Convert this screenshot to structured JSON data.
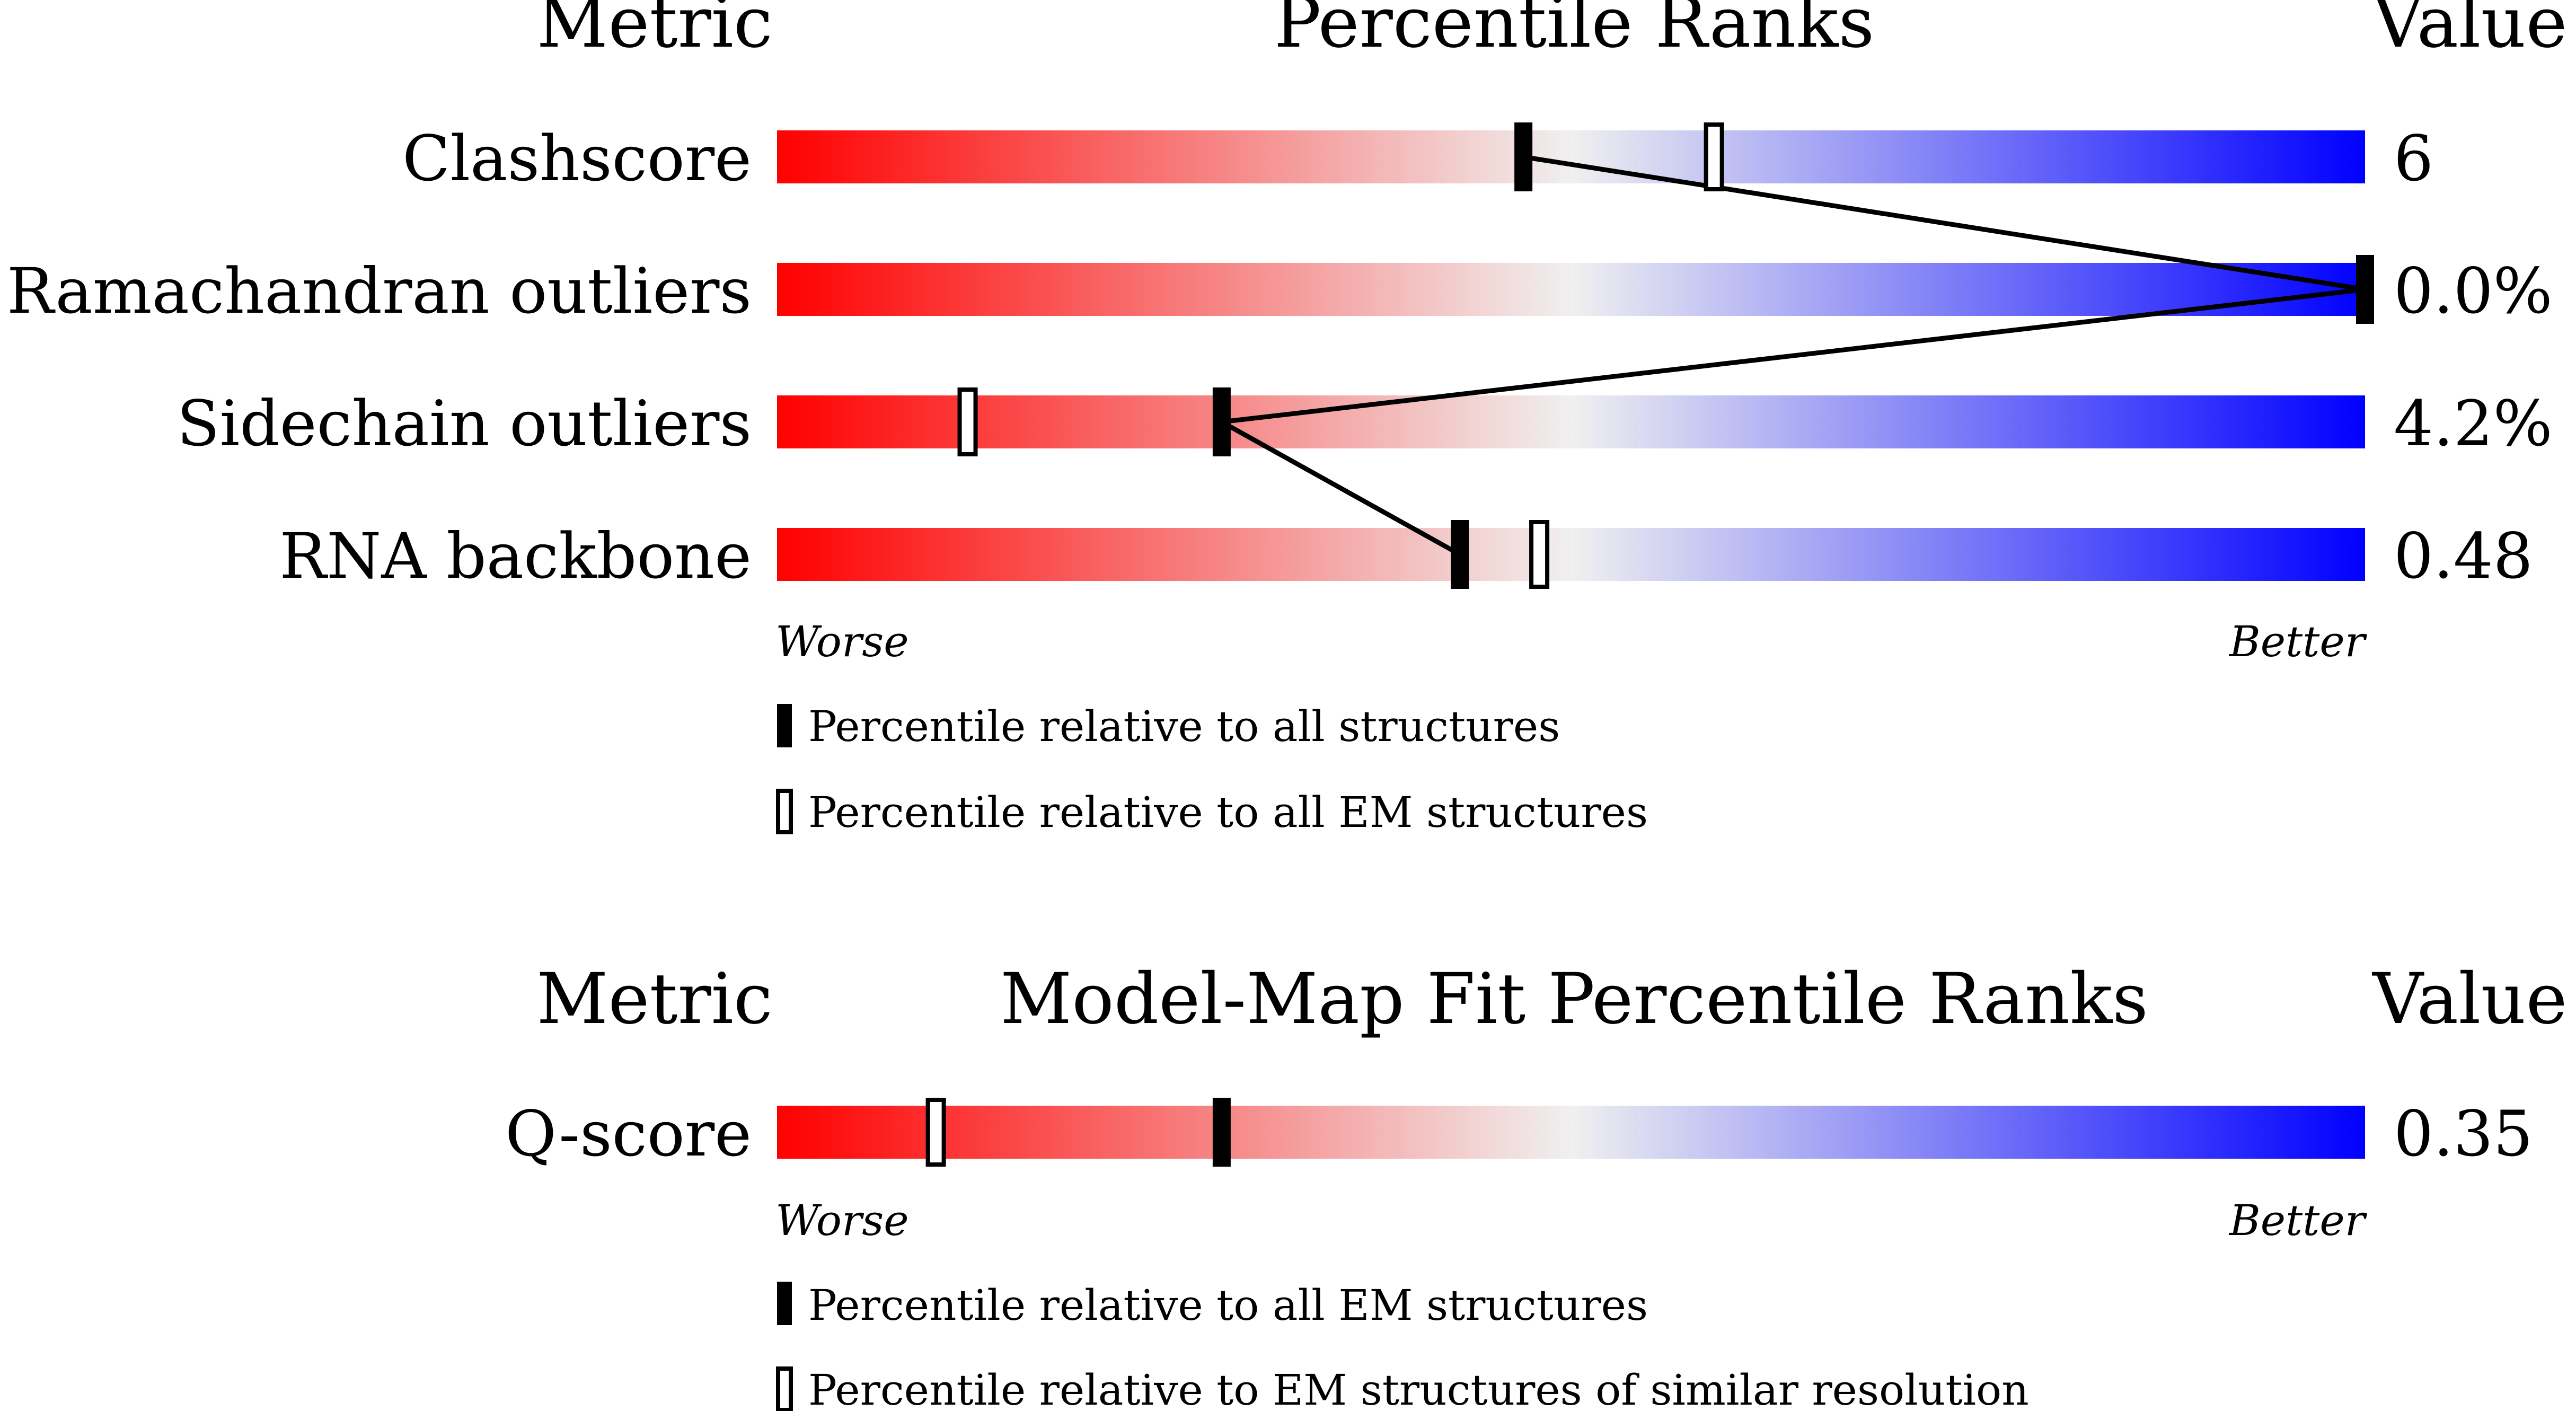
{
  "gradient_colors": {
    "worse": "#ff0000",
    "middle": "#f0f0f0",
    "better": "#0000ff"
  },
  "sections": [
    {
      "header_metric": "Metric",
      "header_title": "Percentile Ranks",
      "header_value": "Value",
      "axis_left": "Worse",
      "axis_right": "Better",
      "legend": [
        {
          "style": "filled",
          "text": "Percentile relative to all structures"
        },
        {
          "style": "hollow",
          "text": "Percentile relative to all EM structures"
        }
      ]
    },
    {
      "header_metric": "Metric",
      "header_title": "Model-Map Fit Percentile Ranks",
      "header_value": "Value",
      "axis_left": "Worse",
      "axis_right": "Better",
      "legend": [
        {
          "style": "filled",
          "text": "Percentile relative to all EM structures"
        },
        {
          "style": "hollow",
          "text": "Percentile relative to EM structures of similar resolution"
        }
      ]
    }
  ],
  "chart_data": [
    {
      "type": "bar",
      "title": "Percentile Ranks",
      "xlim": [
        0,
        100
      ],
      "categories": [
        "Clashscore",
        "Ramachandran outliers",
        "Sidechain outliers",
        "RNA backbone"
      ],
      "values_text": [
        "6",
        "0.0%",
        "4.2%",
        "0.48"
      ],
      "series": [
        {
          "name": "Percentile relative to all structures",
          "marker": "filled",
          "connected": true,
          "values": [
            47,
            100,
            28,
            43
          ]
        },
        {
          "name": "Percentile relative to all EM structures",
          "marker": "hollow",
          "values": [
            59,
            null,
            12,
            48
          ]
        }
      ]
    },
    {
      "type": "bar",
      "title": "Model-Map Fit Percentile Ranks",
      "xlim": [
        0,
        100
      ],
      "categories": [
        "Q-score"
      ],
      "values_text": [
        "0.35"
      ],
      "series": [
        {
          "name": "Percentile relative to all EM structures",
          "marker": "filled",
          "values": [
            28
          ]
        },
        {
          "name": "Percentile relative to EM structures of similar resolution",
          "marker": "hollow",
          "values": [
            10
          ]
        }
      ]
    }
  ]
}
